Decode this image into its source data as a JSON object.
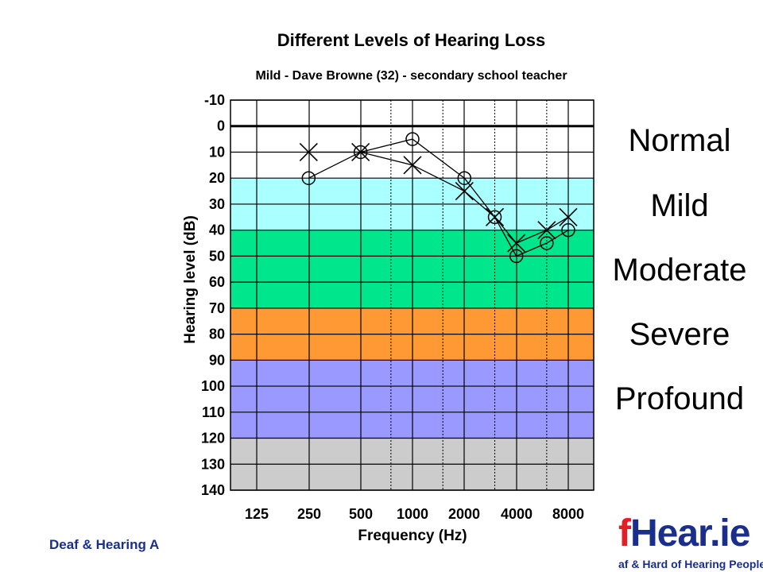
{
  "chart_data": {
    "type": "line",
    "title": "Different Levels of Hearing Loss",
    "subtitle": "Mild - Dave Browne (32) - secondary school teacher",
    "xlabel": "Frequency (Hz)",
    "ylabel": "Hearing level (dB)",
    "x_ticks": [
      "125",
      "250",
      "500",
      "1000",
      "2000",
      "4000",
      "8000"
    ],
    "y_ticks": [
      -10,
      0,
      10,
      20,
      30,
      40,
      50,
      60,
      70,
      80,
      90,
      100,
      110,
      120,
      130,
      140
    ],
    "ylim": [
      140,
      -10
    ],
    "y_inverted": true,
    "x_scale": "log2 octave",
    "grid": true,
    "bands": [
      {
        "label": "Normal",
        "from": -10,
        "to": 20,
        "color": "#ffffff"
      },
      {
        "label": "Mild",
        "from": 20,
        "to": 40,
        "color": "#aaffff"
      },
      {
        "label": "Moderate",
        "from": 40,
        "to": 70,
        "color": "#00e68c"
      },
      {
        "label": "Severe",
        "from": 70,
        "to": 90,
        "color": "#ff9933"
      },
      {
        "label": "Profound",
        "from": 90,
        "to": 120,
        "color": "#9999ff"
      },
      {
        "label": "",
        "from": 120,
        "to": 140,
        "color": "#cccccc"
      }
    ],
    "series": [
      {
        "marker": "circle",
        "x": [
          250,
          500,
          1000,
          2000,
          3000,
          4000,
          6000,
          8000
        ],
        "values": [
          20,
          10,
          5,
          20,
          35,
          50,
          45,
          40
        ]
      },
      {
        "marker": "cross",
        "x": [
          250,
          500,
          1000,
          2000,
          3000,
          4000,
          6000,
          8000
        ],
        "values": [
          10,
          10,
          15,
          25,
          35,
          45,
          40,
          35
        ]
      }
    ]
  },
  "footer": {
    "org_text": "Deaf & Hearing A",
    "logo_f": "f",
    "logo_main": "Hear.ie",
    "logo_sub": "af & Hard of Hearing People"
  }
}
